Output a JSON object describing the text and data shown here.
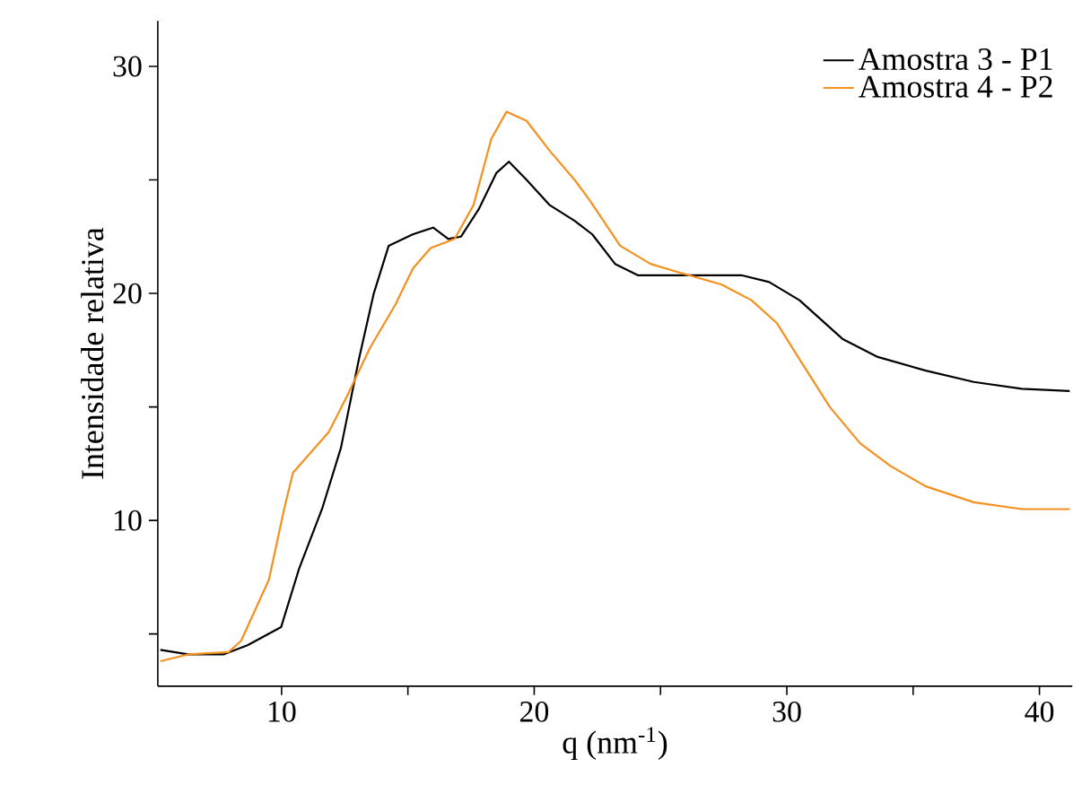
{
  "chart_data": {
    "type": "line",
    "xlabel": "q (nm$^{-1}$)",
    "ylabel": "Intensidade relativa",
    "xlim": [
      5.1,
      41.3
    ],
    "ylim": [
      2.7,
      32
    ],
    "xticks": [
      10,
      {
        "value": 15,
        "label": null
      },
      20,
      {
        "value": 25,
        "label": null
      },
      30,
      {
        "value": 35,
        "label": null
      },
      40
    ],
    "yticks": [
      {
        "value": 5,
        "label": null
      },
      10,
      {
        "value": 15,
        "label": null
      },
      20,
      {
        "value": 25,
        "label": null
      },
      30
    ],
    "legend": "top right",
    "grid": false,
    "marker": "none",
    "line_style": "solid",
    "series": [
      {
        "name": "Amostra 3 - P1",
        "color": "#000000",
        "x": [
          5.2,
          6.3,
          7.7,
          8.65,
          9.98,
          10.7,
          11.6,
          12.35,
          13.06,
          13.65,
          14.24,
          15.19,
          16.0,
          16.6,
          17.1,
          17.8,
          18.5,
          19.0,
          19.7,
          20.6,
          21.6,
          22.3,
          23.2,
          24.1,
          25.8,
          28.2,
          29.3,
          30.5,
          32.2,
          33.6,
          35.5,
          37.4,
          39.3,
          41.2
        ],
        "values": [
          4.3,
          4.1,
          4.1,
          4.5,
          5.3,
          7.9,
          10.5,
          13.2,
          17.1,
          20.0,
          22.1,
          22.6,
          22.9,
          22.4,
          22.5,
          23.7,
          25.3,
          25.8,
          25.0,
          23.9,
          23.2,
          22.6,
          21.3,
          20.8,
          20.8,
          20.8,
          20.5,
          19.7,
          18.0,
          17.2,
          16.6,
          16.1,
          15.8,
          15.7
        ]
      },
      {
        "name": "Amostra 4 - P2",
        "color": "#f5901e",
        "x": [
          5.2,
          6.3,
          7.9,
          8.4,
          9.5,
          10.1,
          10.45,
          11.16,
          11.87,
          12.6,
          13.5,
          14.5,
          15.2,
          15.9,
          16.85,
          17.6,
          18.3,
          18.9,
          19.7,
          20.6,
          21.6,
          22.2,
          23.4,
          24.6,
          25.8,
          27.4,
          28.6,
          29.6,
          30.5,
          31.7,
          32.9,
          34.1,
          35.5,
          37.4,
          39.3,
          41.2
        ],
        "values": [
          3.8,
          4.1,
          4.2,
          4.7,
          7.4,
          10.5,
          12.1,
          13.0,
          13.9,
          15.5,
          17.6,
          19.5,
          21.1,
          22.0,
          22.4,
          23.9,
          26.8,
          28.0,
          27.6,
          26.3,
          25.0,
          24.1,
          22.1,
          21.3,
          20.9,
          20.4,
          19.7,
          18.7,
          17.1,
          15.0,
          13.4,
          12.4,
          11.5,
          10.8,
          10.5,
          10.5
        ]
      }
    ]
  }
}
